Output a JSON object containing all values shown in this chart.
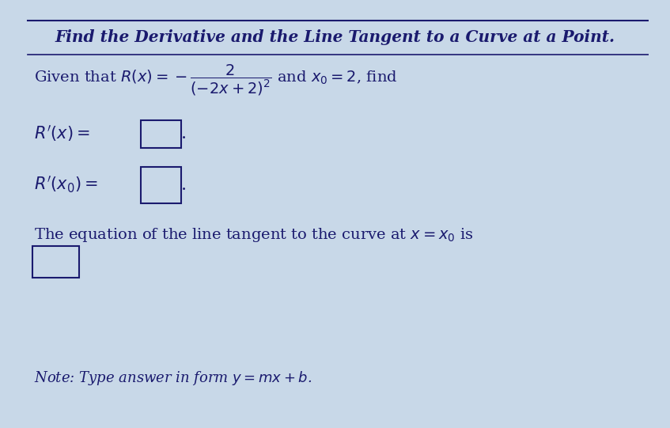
{
  "title": "Find the Derivative and the Line Tangent to a Curve at a Point.",
  "bg_color": "#c8d8e8",
  "text_color": "#1a1a6e",
  "title_fontsize": 14.5,
  "body_fontsize": 14,
  "note_fontsize": 13,
  "line1": "Given that $R(x) = -\\dfrac{2}{(-2x+2)^2}$ and $x_0 = 2$, find",
  "line2_label": "$R^{\\prime}(x) =$",
  "line3_label": "$R^{\\prime}(x_0) =$",
  "line4": "The equation of the line tangent to the curve at $x = x_0$ is",
  "note": "Note: Type answer in form $y = mx + b$."
}
